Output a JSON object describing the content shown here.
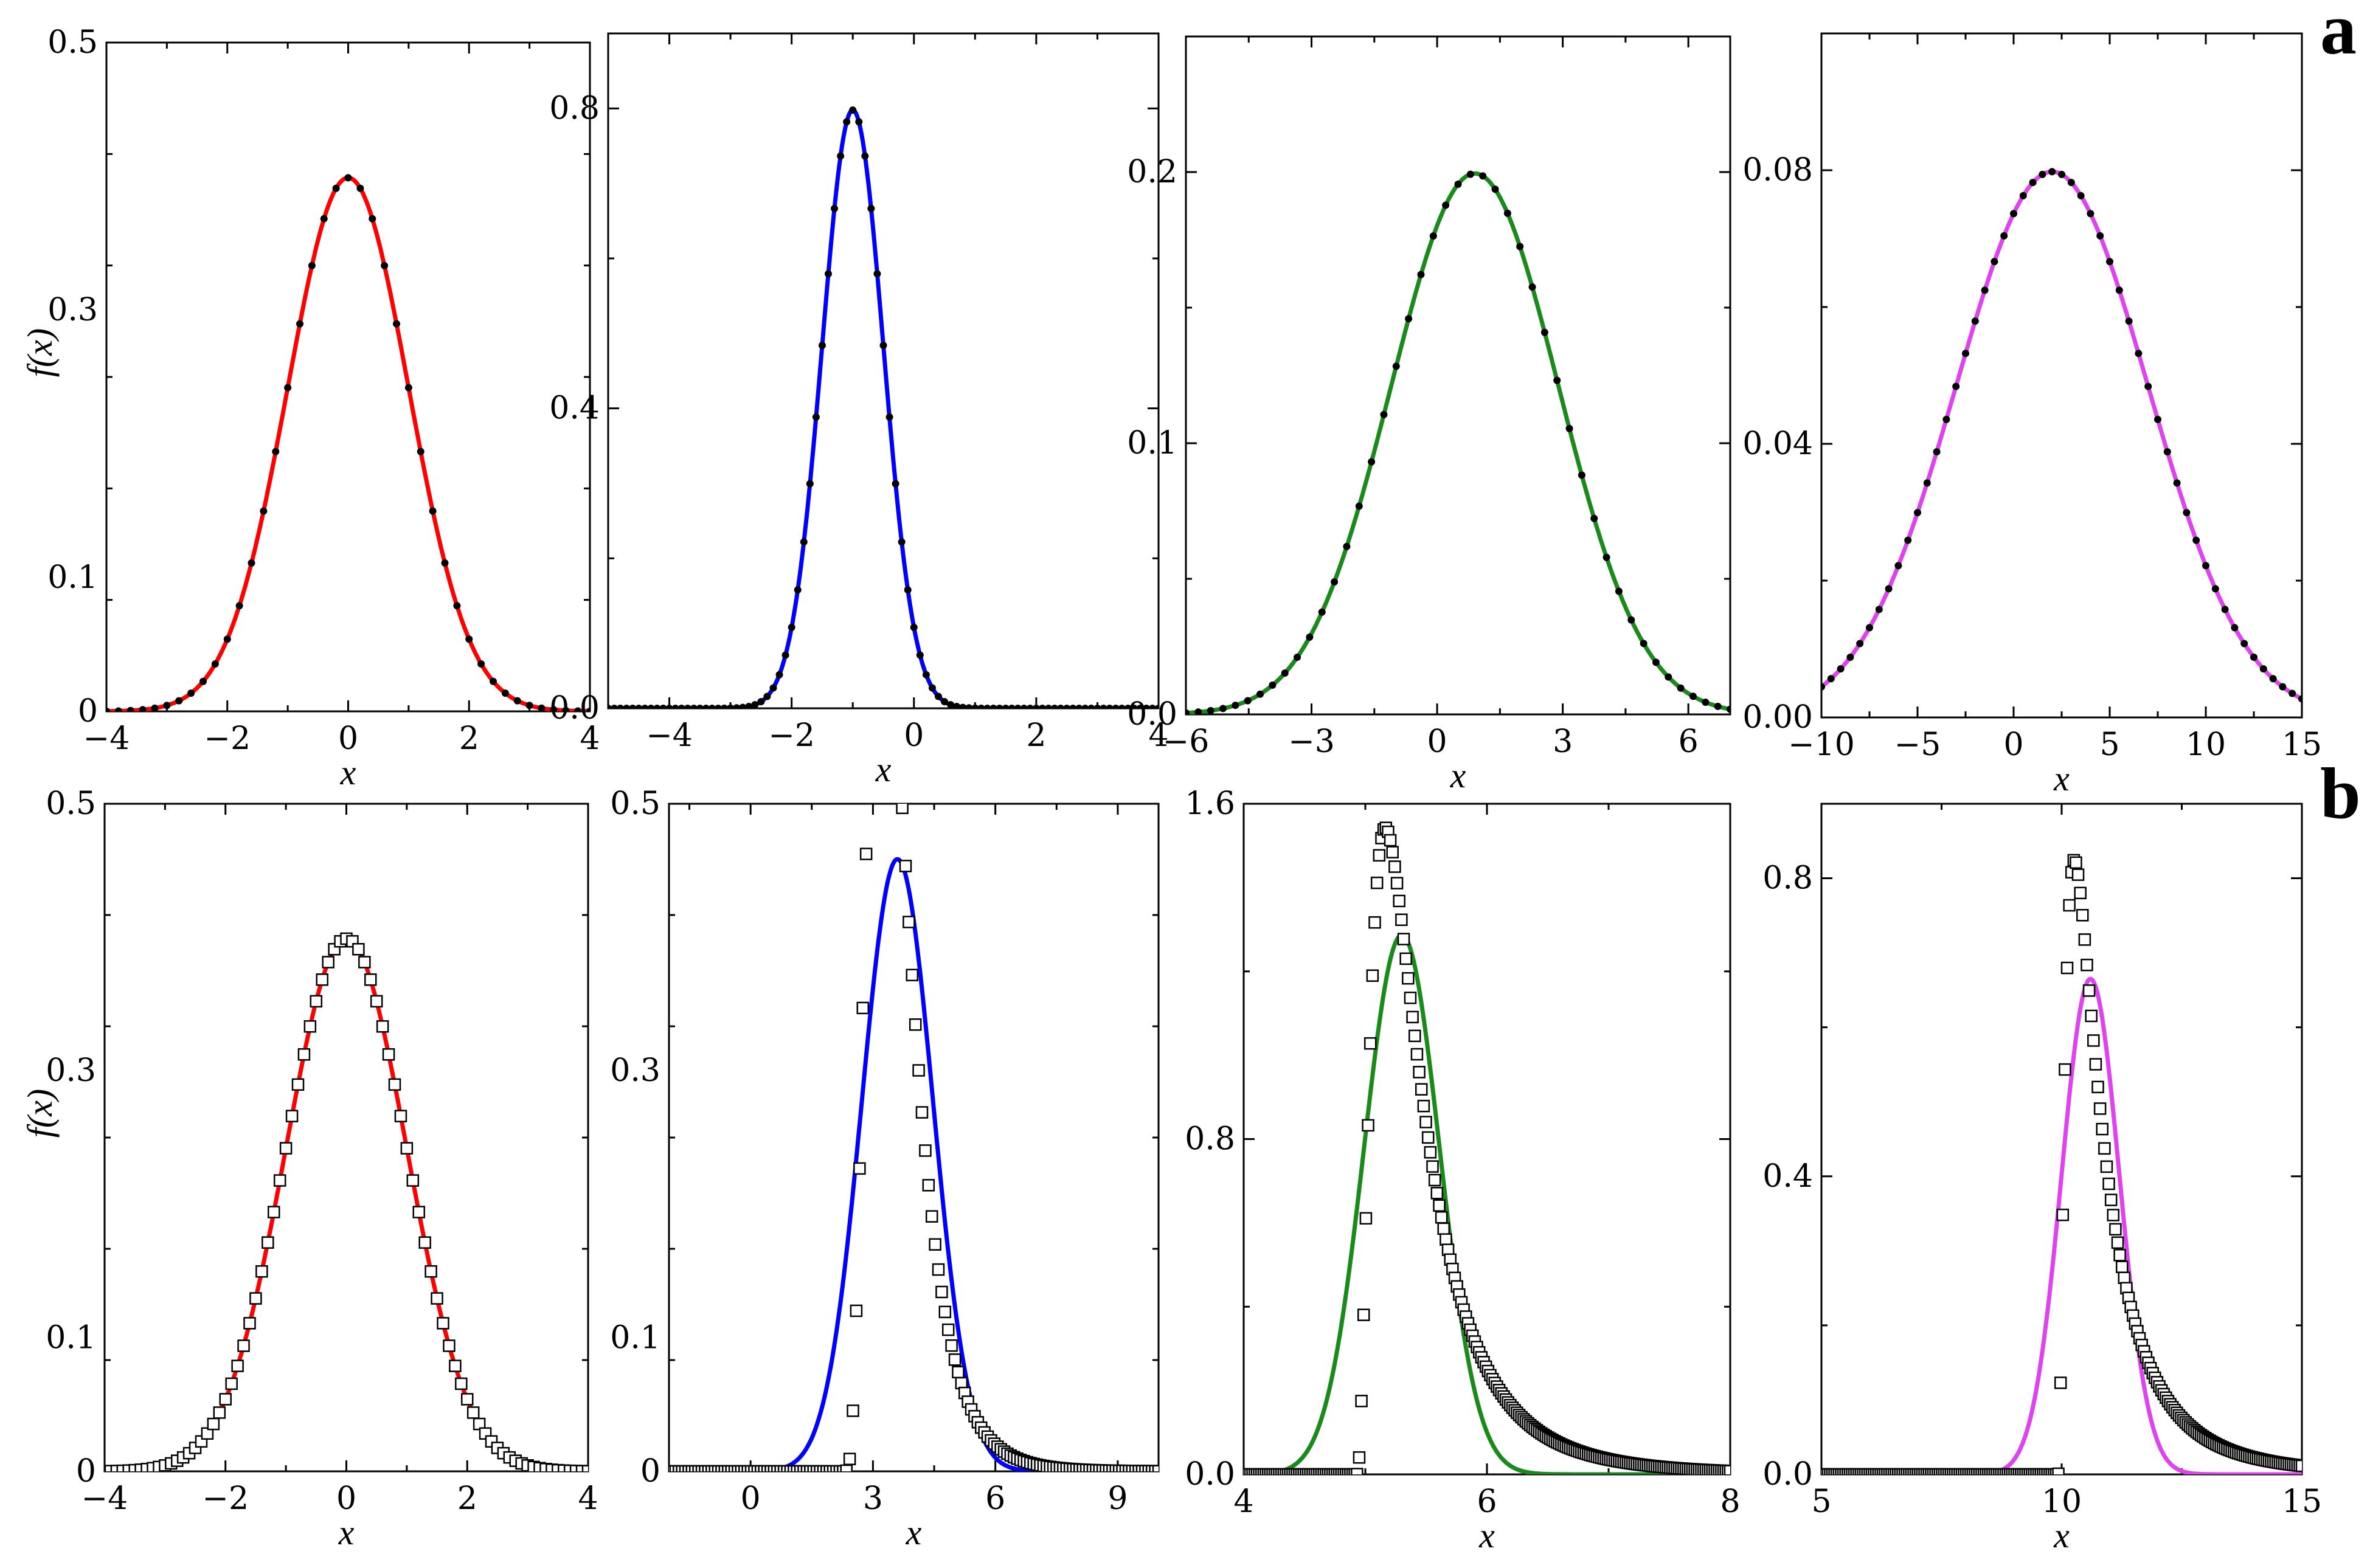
{
  "panel_letters": [
    "a",
    "b"
  ],
  "chart_data": [
    {
      "id": "a1",
      "type": "line",
      "row": "a",
      "xlabel": "x",
      "ylabel": "f(x)",
      "xlim": [
        -4,
        4
      ],
      "ylim": [
        0,
        0.5
      ],
      "xticks": [
        -4,
        -2,
        0,
        2,
        4
      ],
      "xtick_labels": [
        "−4",
        "−2",
        "0",
        "2",
        "4"
      ],
      "yticks": [
        0,
        0.1,
        0.3,
        0.5
      ],
      "ytick_labels": [
        "0",
        "0.1",
        "0.3",
        "0.5"
      ],
      "series": [
        {
          "role": "fit",
          "color": "#ff0000",
          "curve": {
            "kind": "normal",
            "mu": 0,
            "sigma": 1
          }
        },
        {
          "role": "data",
          "marker": "dot",
          "color": "#000000",
          "curve": {
            "kind": "normal",
            "mu": 0,
            "sigma": 1
          },
          "x_range": [
            -4,
            4
          ],
          "n": 41
        }
      ]
    },
    {
      "id": "a2",
      "type": "line",
      "row": "a",
      "xlabel": "x",
      "ylabel": "",
      "xlim": [
        -5,
        4
      ],
      "ylim": [
        0,
        0.9
      ],
      "xticks": [
        -4,
        -2,
        0,
        2,
        4
      ],
      "xtick_labels": [
        "−4",
        "−2",
        "0",
        "2",
        "4"
      ],
      "yticks": [
        0,
        0.4,
        0.8
      ],
      "ytick_labels": [
        "0.0",
        "0.4",
        "0.8"
      ],
      "series": [
        {
          "role": "fit",
          "color": "#0000ff",
          "curve": {
            "kind": "normal",
            "mu": -1,
            "sigma": 0.5
          }
        },
        {
          "role": "data",
          "marker": "dot",
          "color": "#000000",
          "curve": {
            "kind": "normal",
            "mu": -1,
            "sigma": 0.5
          },
          "x_range": [
            -5,
            4
          ],
          "n": 91
        }
      ]
    },
    {
      "id": "a3",
      "type": "line",
      "row": "a",
      "xlabel": "x",
      "ylabel": "",
      "xlim": [
        -6,
        7
      ],
      "ylim": [
        0,
        0.25
      ],
      "xticks": [
        -6,
        -3,
        0,
        3,
        6
      ],
      "xtick_labels": [
        "−6",
        "−3",
        "0",
        "3",
        "6"
      ],
      "yticks": [
        0,
        0.1,
        0.2
      ],
      "ytick_labels": [
        "0.0",
        "0.1",
        "0.2"
      ],
      "series": [
        {
          "role": "fit",
          "color": "#1a8a1a",
          "curve": {
            "kind": "normal",
            "mu": 0.9,
            "sigma": 2
          }
        },
        {
          "role": "data",
          "marker": "dot",
          "color": "#000000",
          "curve": {
            "kind": "normal",
            "mu": 0.9,
            "sigma": 2
          },
          "x_range": [
            -6,
            7
          ],
          "n": 45
        }
      ]
    },
    {
      "id": "a4",
      "type": "line",
      "row": "a",
      "xlabel": "x",
      "ylabel": "",
      "xlim": [
        -10,
        15
      ],
      "ylim": [
        0,
        0.1
      ],
      "xticks": [
        -10,
        -5,
        0,
        5,
        10,
        15
      ],
      "xtick_labels": [
        "−10",
        "−5",
        "0",
        "5",
        "10",
        "15"
      ],
      "yticks": [
        0,
        0.04,
        0.08
      ],
      "ytick_labels": [
        "0.00",
        "0.04",
        "0.08"
      ],
      "series": [
        {
          "role": "fit",
          "color": "#dd44ee",
          "curve": {
            "kind": "normal",
            "mu": 2,
            "sigma": 5
          }
        },
        {
          "role": "data",
          "marker": "dot",
          "color": "#000000",
          "curve": {
            "kind": "normal",
            "mu": 2,
            "sigma": 5
          },
          "x_range": [
            -10,
            15
          ],
          "n": 51
        }
      ]
    },
    {
      "id": "b1",
      "type": "line",
      "row": "b",
      "xlabel": "x",
      "ylabel": "f(x)",
      "xlim": [
        -4,
        4
      ],
      "ylim": [
        0,
        0.5
      ],
      "xticks": [
        -4,
        -2,
        0,
        2,
        4
      ],
      "xtick_labels": [
        "−4",
        "−2",
        "0",
        "2",
        "4"
      ],
      "yticks": [
        0,
        0.1,
        0.3,
        0.5
      ],
      "ytick_labels": [
        "0",
        "0.1",
        "0.3",
        "0.5"
      ],
      "series": [
        {
          "role": "fit",
          "color": "#ff0000",
          "curve": {
            "kind": "normal",
            "mu": 0,
            "sigma": 1
          }
        },
        {
          "role": "data",
          "marker": "square",
          "color": "#000000",
          "curve": {
            "kind": "normal",
            "mu": 0,
            "sigma": 1
          },
          "x_range": [
            -4,
            4
          ],
          "n": 81
        }
      ]
    },
    {
      "id": "b2",
      "type": "line",
      "row": "b",
      "xlabel": "x",
      "ylabel": "",
      "xlim": [
        -2,
        10
      ],
      "ylim": [
        0,
        0.5
      ],
      "xticks": [
        0,
        3,
        6,
        9
      ],
      "xtick_labels": [
        "0",
        "3",
        "6",
        "9"
      ],
      "yticks": [
        0,
        0.1,
        0.3,
        0.5
      ],
      "ytick_labels": [
        "0",
        "0.1",
        "0.3",
        "0.5"
      ],
      "series": [
        {
          "role": "fit",
          "color": "#0000ff",
          "curve": {
            "kind": "normal",
            "mu": 3.6,
            "sigma": 0.87
          }
        },
        {
          "role": "data",
          "marker": "square",
          "color": "#000000",
          "curve": {
            "kind": "lognormal",
            "loc": 2.2,
            "m": 0.25,
            "s": 0.5
          },
          "x_range": [
            -2,
            10
          ],
          "n": 150
        }
      ]
    },
    {
      "id": "b3",
      "type": "line",
      "row": "b",
      "xlabel": "x",
      "ylabel": "",
      "xlim": [
        4,
        8
      ],
      "ylim": [
        0,
        1.6
      ],
      "xticks": [
        4,
        6,
        8
      ],
      "xtick_labels": [
        "4",
        "6",
        "8"
      ],
      "yticks": [
        0,
        0.8,
        1.6
      ],
      "ytick_labels": [
        "0.0",
        "0.8",
        "1.6"
      ],
      "series": [
        {
          "role": "fit",
          "color": "#1a8a1a",
          "curve": {
            "kind": "normal",
            "mu": 5.3,
            "sigma": 0.31
          }
        },
        {
          "role": "data",
          "marker": "square",
          "color": "#000000",
          "curve": {
            "kind": "lognormal",
            "loc": 4.92,
            "m": -0.8,
            "s": 0.78
          },
          "x_range": [
            4,
            8
          ],
          "n": 220
        }
      ]
    },
    {
      "id": "b4",
      "type": "line",
      "row": "b",
      "xlabel": "x",
      "ylabel": "",
      "xlim": [
        5,
        15
      ],
      "ylim": [
        0,
        0.9
      ],
      "xticks": [
        5,
        10,
        15
      ],
      "xtick_labels": [
        "5",
        "10",
        "15"
      ],
      "yticks": [
        0,
        0.4,
        0.8
      ],
      "ytick_labels": [
        "0.0",
        "0.4",
        "0.8"
      ],
      "series": [
        {
          "role": "fit",
          "color": "#dd44ee",
          "curve": {
            "kind": "normal",
            "mu": 10.6,
            "sigma": 0.6
          }
        },
        {
          "role": "data",
          "marker": "square",
          "color": "#000000",
          "curve": {
            "kind": "lognormal",
            "loc": 9.92,
            "m": -0.22,
            "s": 0.92
          },
          "x_range": [
            5,
            15
          ],
          "n": 220
        }
      ]
    }
  ]
}
